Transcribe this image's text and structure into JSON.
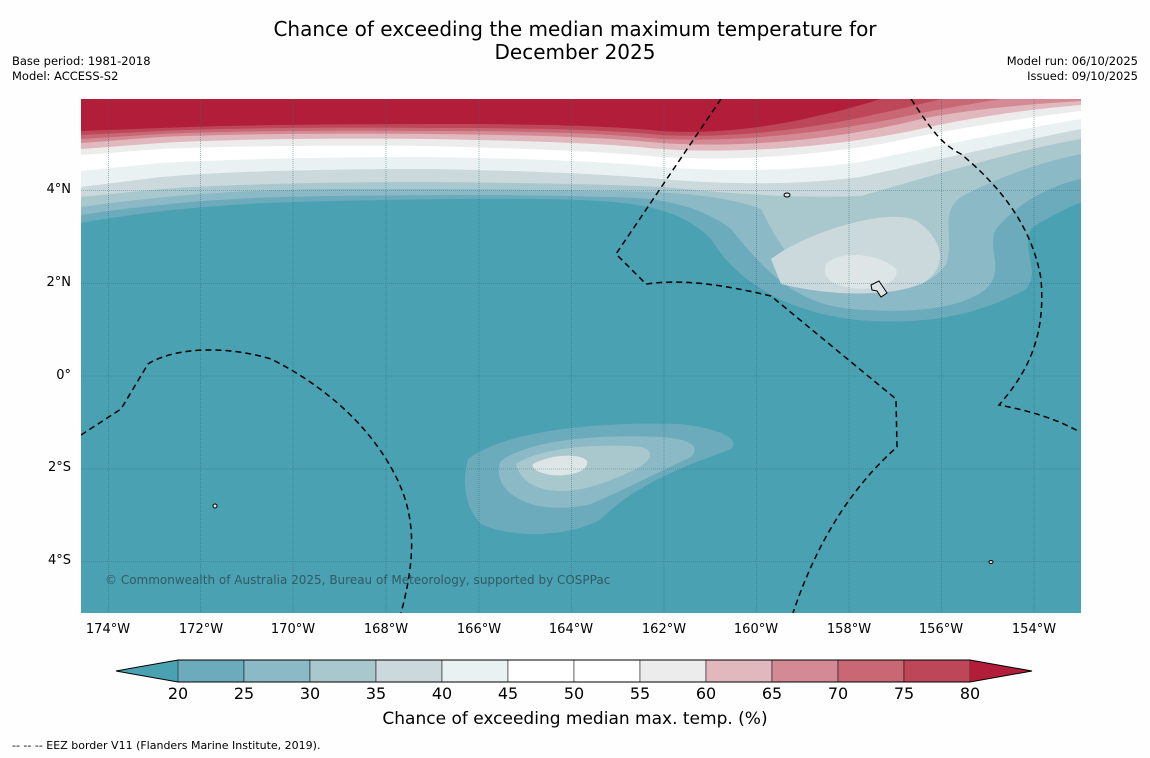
{
  "title_line1": "Chance of exceeding the median maximum temperature for",
  "title_line2": "December 2025",
  "base_period": "Base period: 1981-2018",
  "model": "Model: ACCESS-S2",
  "model_run": "Model run: 06/10/2025",
  "issued": "Issued: 09/10/2025",
  "lat_ticks": [
    "4°N",
    "2°N",
    "0°",
    "2°S",
    "4°S"
  ],
  "lon_ticks": [
    "174°W",
    "172°W",
    "170°W",
    "168°W",
    "166°W",
    "164°W",
    "162°W",
    "160°W",
    "158°W",
    "156°W",
    "154°W"
  ],
  "copyright": "© Commonwealth of Australia 2025, Bureau of Meteorology, supported by COSPPac",
  "colorbar": {
    "title": "Chance of exceeding median max. temp. (%)",
    "labels": [
      "20",
      "25",
      "30",
      "35",
      "40",
      "45",
      "50",
      "55",
      "60",
      "65",
      "70",
      "75",
      "80"
    ],
    "colors": [
      "#4aa1b2",
      "#6cabbb",
      "#8bbac6",
      "#a9c8cd",
      "#cbd9dc",
      "#eaf1f2",
      "#ffffff",
      "#ffffff",
      "#ececec",
      "#e1b8bd",
      "#d48a95",
      "#c96774",
      "#bd4659",
      "#b21e3a"
    ]
  },
  "footer": "--  --  -- EEZ border V11 (Flanders Marine Institute, 2019)."
}
